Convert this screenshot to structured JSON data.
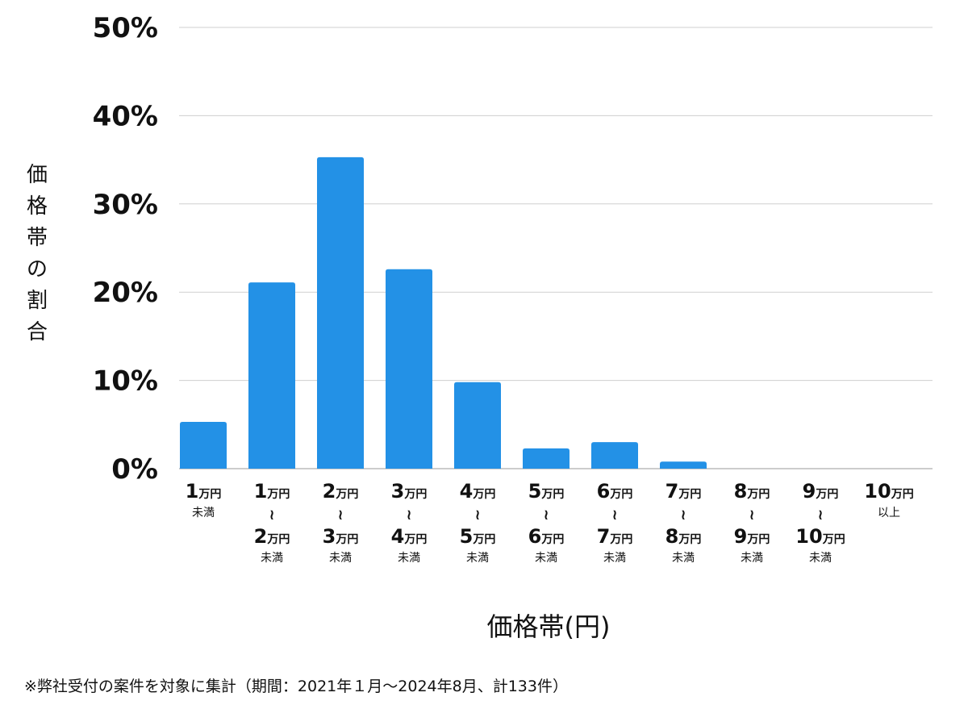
{
  "chart_data": {
    "type": "bar",
    "ylabel": "価格帯の割合",
    "xlabel": "価格帯(円)",
    "ylim": [
      0,
      50
    ],
    "yticks": [
      0,
      10,
      20,
      30,
      40,
      50
    ],
    "ytick_labels": [
      "0%",
      "10%",
      "20%",
      "30%",
      "40%",
      "50%"
    ],
    "grid": true,
    "bar_color": "#2391e6",
    "categories": [
      {
        "from": "1",
        "from_unit": "万円",
        "to": "",
        "to_unit": "",
        "suffix": "未満"
      },
      {
        "from": "1",
        "from_unit": "万円",
        "to": "2",
        "to_unit": "万円",
        "suffix": "未満"
      },
      {
        "from": "2",
        "from_unit": "万円",
        "to": "3",
        "to_unit": "万円",
        "suffix": "未満"
      },
      {
        "from": "3",
        "from_unit": "万円",
        "to": "4",
        "to_unit": "万円",
        "suffix": "未満"
      },
      {
        "from": "4",
        "from_unit": "万円",
        "to": "5",
        "to_unit": "万円",
        "suffix": "未満"
      },
      {
        "from": "5",
        "from_unit": "万円",
        "to": "6",
        "to_unit": "万円",
        "suffix": "未満"
      },
      {
        "from": "6",
        "from_unit": "万円",
        "to": "7",
        "to_unit": "万円",
        "suffix": "未満"
      },
      {
        "from": "7",
        "from_unit": "万円",
        "to": "8",
        "to_unit": "万円",
        "suffix": "未満"
      },
      {
        "from": "8",
        "from_unit": "万円",
        "to": "9",
        "to_unit": "万円",
        "suffix": "未満"
      },
      {
        "from": "9",
        "from_unit": "万円",
        "to": "10",
        "to_unit": "万円",
        "suffix": "未満"
      },
      {
        "from": "10",
        "from_unit": "万円",
        "to": "",
        "to_unit": "",
        "suffix": "以上"
      }
    ],
    "range_symbol": "≀",
    "values": [
      5.3,
      21.1,
      35.3,
      22.6,
      9.8,
      2.3,
      3.0,
      0.8,
      0,
      0,
      0
    ]
  },
  "footnote": "※弊社受付の案件を対象に集計（期間：2021年１月〜2024年8月、計133件）"
}
